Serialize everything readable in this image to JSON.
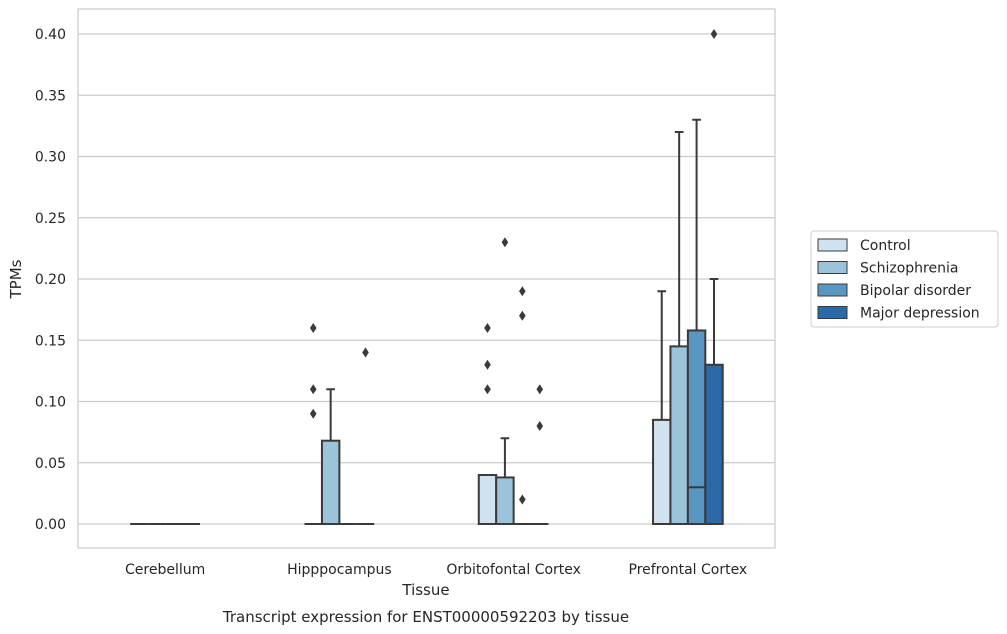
{
  "caption": "Transcript expression for ENST00000592203 by tissue",
  "chart_data": {
    "type": "box",
    "xlabel": "Tissue",
    "ylabel": "TPMs",
    "ylim": [
      -0.02,
      0.42
    ],
    "yticks": [
      "0.00",
      "0.05",
      "0.10",
      "0.15",
      "0.20",
      "0.25",
      "0.30",
      "0.35",
      "0.40"
    ],
    "ytick_values": [
      0,
      0.05,
      0.1,
      0.15,
      0.2,
      0.25,
      0.3,
      0.35,
      0.4
    ],
    "grid": "horizontal",
    "legend_position": "right",
    "categories": [
      "Cerebellum",
      "Hipppocampus",
      "Orbitofontal Cortex",
      "Prefrontal Cortex"
    ],
    "series": [
      {
        "name": "Control",
        "color": "#d0e1f0",
        "boxes": [
          {
            "q1": 0,
            "median": 0,
            "q3": 0,
            "whisker_low": 0,
            "whisker_high": 0,
            "outliers": []
          },
          {
            "q1": 0,
            "median": 0,
            "q3": 0,
            "whisker_low": 0,
            "whisker_high": 0,
            "outliers": [
              0.16,
              0.11,
              0.09
            ]
          },
          {
            "q1": 0,
            "median": 0,
            "q3": 0.04,
            "whisker_low": 0,
            "whisker_high": 0.04,
            "outliers": [
              0.16,
              0.13,
              0.11
            ]
          },
          {
            "q1": 0,
            "median": 0,
            "q3": 0.085,
            "whisker_low": 0,
            "whisker_high": 0.19,
            "outliers": []
          }
        ]
      },
      {
        "name": "Schizophrenia",
        "color": "#9cc3dc",
        "boxes": [
          {
            "q1": 0,
            "median": 0,
            "q3": 0,
            "whisker_low": 0,
            "whisker_high": 0,
            "outliers": []
          },
          {
            "q1": 0,
            "median": 0,
            "q3": 0.068,
            "whisker_low": 0,
            "whisker_high": 0.11,
            "outliers": []
          },
          {
            "q1": 0,
            "median": 0,
            "q3": 0.038,
            "whisker_low": 0,
            "whisker_high": 0.07,
            "outliers": [
              0.23
            ]
          },
          {
            "q1": 0,
            "median": 0,
            "q3": 0.145,
            "whisker_low": 0,
            "whisker_high": 0.32,
            "outliers": []
          }
        ]
      },
      {
        "name": "Bipolar disorder",
        "color": "#5a96c2",
        "boxes": [
          {
            "q1": 0,
            "median": 0,
            "q3": 0,
            "whisker_low": 0,
            "whisker_high": 0,
            "outliers": []
          },
          {
            "q1": 0,
            "median": 0,
            "q3": 0,
            "whisker_low": 0,
            "whisker_high": 0,
            "outliers": []
          },
          {
            "q1": 0,
            "median": 0,
            "q3": 0,
            "whisker_low": 0,
            "whisker_high": 0,
            "outliers": [
              0.19,
              0.17,
              0.02
            ]
          },
          {
            "q1": 0,
            "median": 0.03,
            "q3": 0.158,
            "whisker_low": 0,
            "whisker_high": 0.33,
            "outliers": []
          }
        ]
      },
      {
        "name": "Major depression",
        "color": "#2a6aa8",
        "boxes": [
          {
            "q1": 0,
            "median": 0,
            "q3": 0,
            "whisker_low": 0,
            "whisker_high": 0,
            "outliers": []
          },
          {
            "q1": 0,
            "median": 0,
            "q3": 0,
            "whisker_low": 0,
            "whisker_high": 0,
            "outliers": [
              0.14
            ]
          },
          {
            "q1": 0,
            "median": 0,
            "q3": 0,
            "whisker_low": 0,
            "whisker_high": 0,
            "outliers": [
              0.11,
              0.08
            ]
          },
          {
            "q1": 0,
            "median": 0,
            "q3": 0.13,
            "whisker_low": 0,
            "whisker_high": 0.2,
            "outliers": [
              0.4
            ]
          }
        ]
      }
    ]
  }
}
